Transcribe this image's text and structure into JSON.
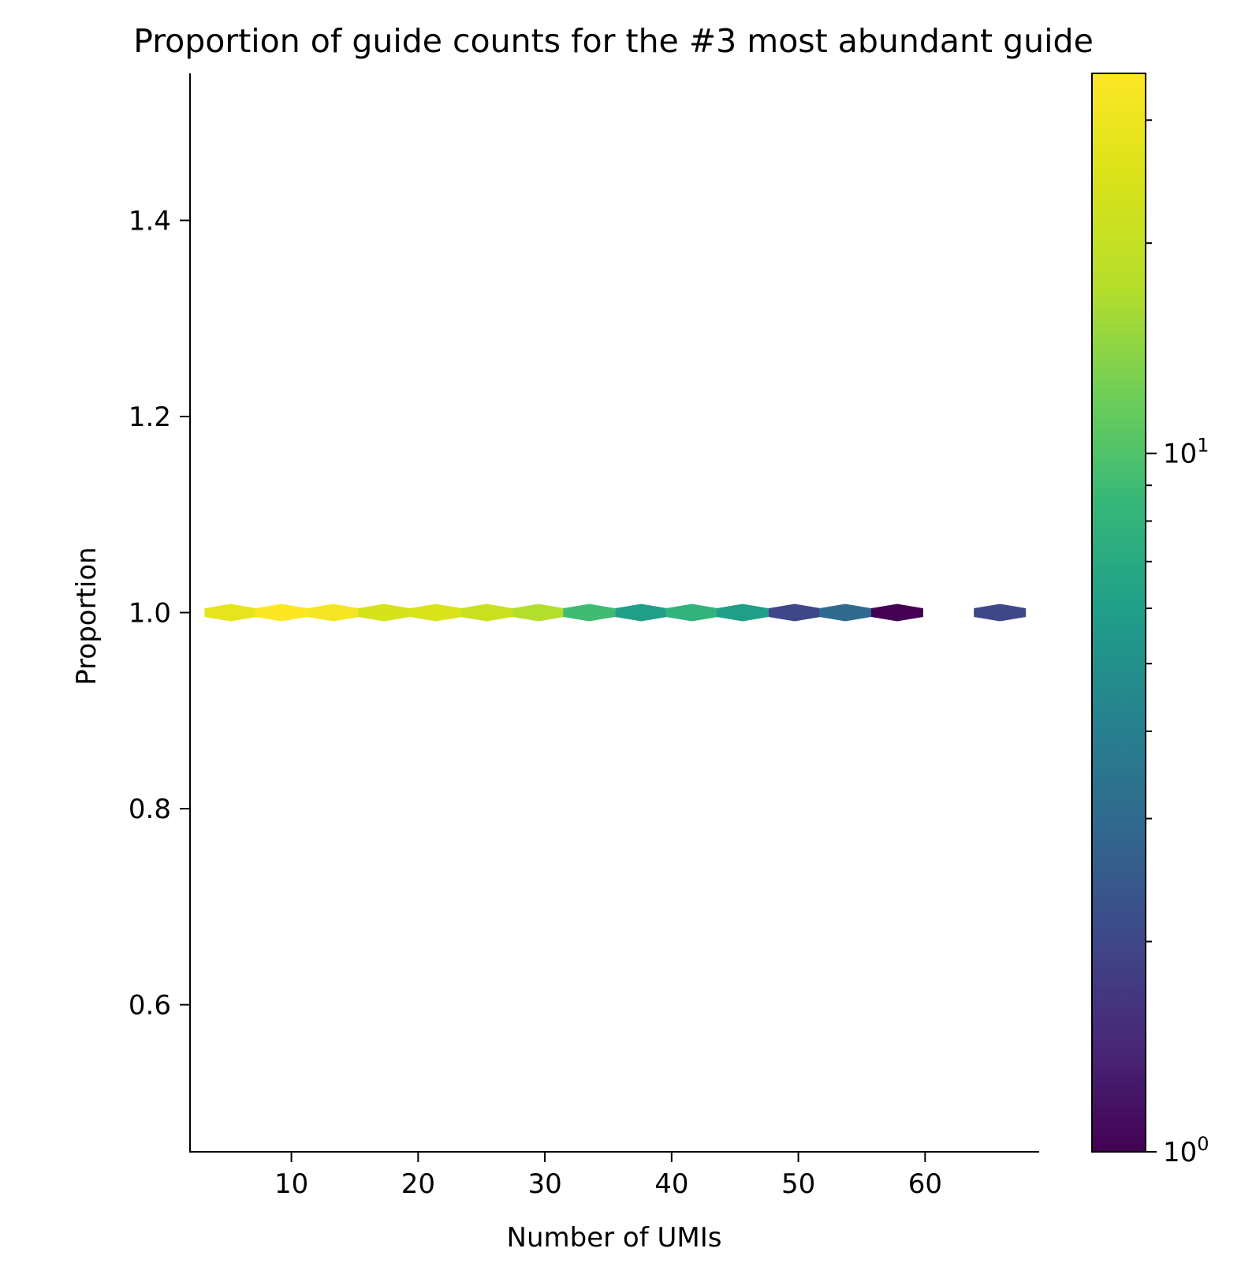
{
  "chart_data": {
    "type": "hexbin",
    "title": "Proportion of guide counts for the #3 most abundant guide",
    "xlabel": "Number of UMIs",
    "ylabel": "Proportion",
    "xlim": [
      2,
      69
    ],
    "ylim": [
      0.45,
      1.55
    ],
    "x_ticks": [
      10,
      20,
      30,
      40,
      50,
      60
    ],
    "y_ticks": [
      0.6,
      0.8,
      1.0,
      1.2,
      1.4
    ],
    "y_tick_labels": [
      "0.6",
      "0.8",
      "1.0",
      "1.2",
      "1.4"
    ],
    "colormap": "viridis",
    "color_scale": "log",
    "color_range": [
      1,
      35
    ],
    "colorbar_ticks": [
      {
        "value": 1,
        "base": "10",
        "exp": "0"
      },
      {
        "value": 10,
        "base": "10",
        "exp": "1"
      }
    ],
    "grid": false,
    "bins": [
      {
        "x": 5.2,
        "y": 1.0,
        "count": 28
      },
      {
        "x": 9.2,
        "y": 1.0,
        "count": 35
      },
      {
        "x": 13.3,
        "y": 1.0,
        "count": 32
      },
      {
        "x": 17.3,
        "y": 1.0,
        "count": 24
      },
      {
        "x": 21.4,
        "y": 1.0,
        "count": 25
      },
      {
        "x": 25.4,
        "y": 1.0,
        "count": 21
      },
      {
        "x": 29.5,
        "y": 1.0,
        "count": 17
      },
      {
        "x": 33.5,
        "y": 1.0,
        "count": 9
      },
      {
        "x": 37.6,
        "y": 1.0,
        "count": 6
      },
      {
        "x": 41.6,
        "y": 1.0,
        "count": 8
      },
      {
        "x": 45.6,
        "y": 1.0,
        "count": 6
      },
      {
        "x": 49.7,
        "y": 1.0,
        "count": 2
      },
      {
        "x": 53.7,
        "y": 1.0,
        "count": 3
      },
      {
        "x": 57.8,
        "y": 1.0,
        "count": 1
      },
      {
        "x": 65.9,
        "y": 1.0,
        "count": 2
      }
    ]
  }
}
